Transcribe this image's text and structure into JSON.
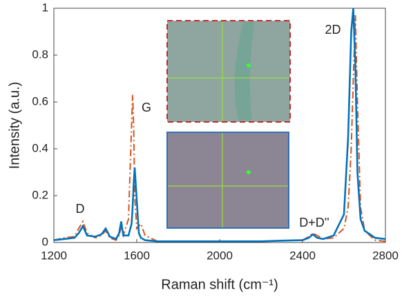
{
  "chart_data": {
    "type": "line",
    "xlabel": "Raman shift (cm⁻¹)",
    "ylabel": "Intensity (a.u.)",
    "xlim": [
      1200,
      2800
    ],
    "xticks": [
      1200,
      1600,
      2000,
      2400,
      2800
    ],
    "ylim": [
      0,
      1
    ],
    "yticks": [
      0,
      0.2,
      0.4,
      0.6,
      0.8,
      1
    ],
    "annotations": [
      "D",
      "G",
      "2D",
      "D+D''"
    ],
    "x": [
      1200,
      1250,
      1300,
      1320,
      1340,
      1360,
      1400,
      1430,
      1450,
      1470,
      1500,
      1515,
      1525,
      1535,
      1560,
      1575,
      1580,
      1585,
      1590,
      1600,
      1610,
      1620,
      1640,
      1700,
      1800,
      2000,
      2200,
      2300,
      2400,
      2430,
      2450,
      2470,
      2500,
      2550,
      2600,
      2620,
      2635,
      2645,
      2655,
      2665,
      2680,
      2700,
      2750,
      2800
    ],
    "series": [
      {
        "color": "#d95319",
        "dash": true,
        "values": [
          0.01,
          0.02,
          0.025,
          0.06,
          0.09,
          0.04,
          0.02,
          0.03,
          0.05,
          0.02,
          0.01,
          0.03,
          0.07,
          0.03,
          0.1,
          0.5,
          0.63,
          0.5,
          0.2,
          0.06,
          0.07,
          0.08,
          0.03,
          0.005,
          0.005,
          0.005,
          0.005,
          0.008,
          0.01,
          0.025,
          0.04,
          0.03,
          0.015,
          0.02,
          0.06,
          0.15,
          0.4,
          0.7,
          0.97,
          0.6,
          0.15,
          0.05,
          0.01,
          0.005
        ]
      },
      {
        "color": "#0072bd",
        "dash": false,
        "values": [
          0.01,
          0.015,
          0.02,
          0.04,
          0.07,
          0.03,
          0.025,
          0.035,
          0.06,
          0.025,
          0.015,
          0.04,
          0.09,
          0.03,
          0.03,
          0.08,
          0.15,
          0.25,
          0.32,
          0.18,
          0.04,
          0.02,
          0.01,
          0.005,
          0.005,
          0.005,
          0.005,
          0.008,
          0.01,
          0.02,
          0.035,
          0.02,
          0.015,
          0.03,
          0.12,
          0.45,
          0.9,
          1.0,
          0.75,
          0.3,
          0.1,
          0.05,
          0.02,
          0.015
        ]
      }
    ]
  }
}
